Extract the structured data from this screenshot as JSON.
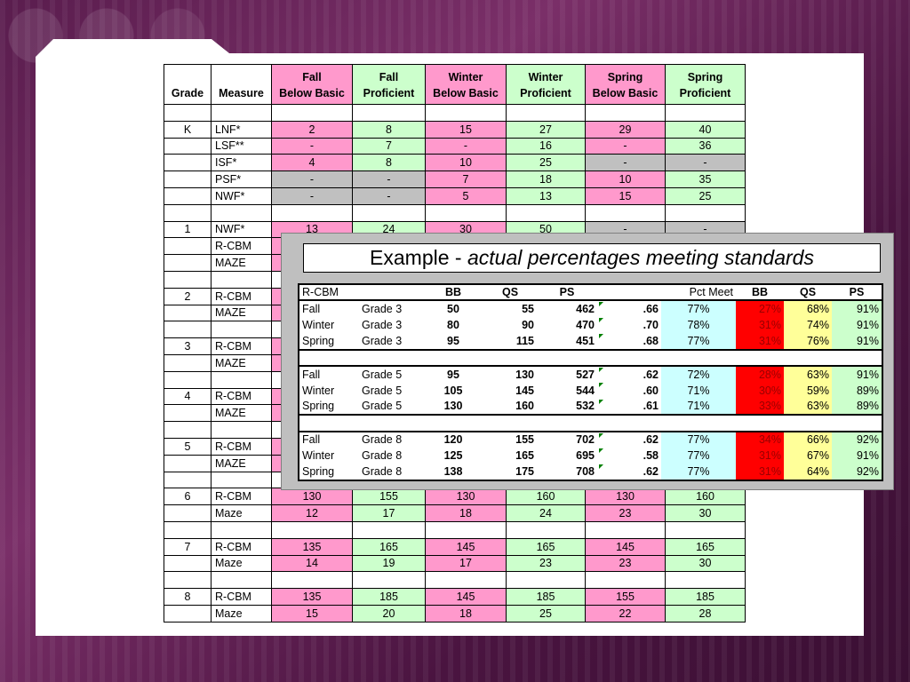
{
  "main_table": {
    "headers": [
      {
        "line1": "",
        "line2": "Grade"
      },
      {
        "line1": "",
        "line2": "Measure"
      },
      {
        "line1": "Fall",
        "line2": "Below Basic"
      },
      {
        "line1": "Fall",
        "line2": "Proficient"
      },
      {
        "line1": "Winter",
        "line2": "Below Basic"
      },
      {
        "line1": "Winter",
        "line2": "Proficient"
      },
      {
        "line1": "Spring",
        "line2": "Below Basic"
      },
      {
        "line1": "Spring",
        "line2": "Proficient"
      }
    ],
    "rows": [
      {
        "grade": "",
        "measure": "",
        "vals": [
          "",
          "",
          "",
          "",
          "",
          ""
        ],
        "cls": [
          "w",
          "w",
          "w",
          "w",
          "w",
          "w"
        ]
      },
      {
        "grade": "K",
        "measure": "LNF*",
        "vals": [
          "2",
          "8",
          "15",
          "27",
          "29",
          "40"
        ],
        "cls": [
          "p",
          "g",
          "p",
          "g",
          "p",
          "g"
        ]
      },
      {
        "grade": "",
        "measure": "LSF**",
        "vals": [
          "-",
          "7",
          "-",
          "16",
          "-",
          "36"
        ],
        "cls": [
          "p",
          "g",
          "p",
          "g",
          "p",
          "g"
        ]
      },
      {
        "grade": "",
        "measure": "ISF*",
        "vals": [
          "4",
          "8",
          "10",
          "25",
          "-",
          "-"
        ],
        "cls": [
          "p",
          "g",
          "p",
          "g",
          "x",
          "x"
        ]
      },
      {
        "grade": "",
        "measure": "PSF*",
        "vals": [
          "-",
          "-",
          "7",
          "18",
          "10",
          "35"
        ],
        "cls": [
          "x",
          "x",
          "p",
          "g",
          "p",
          "g"
        ]
      },
      {
        "grade": "",
        "measure": "NWF*",
        "vals": [
          "-",
          "-",
          "5",
          "13",
          "15",
          "25"
        ],
        "cls": [
          "x",
          "x",
          "p",
          "g",
          "p",
          "g"
        ]
      },
      {
        "grade": "",
        "measure": "",
        "vals": [
          "",
          "",
          "",
          "",
          "",
          ""
        ],
        "cls": [
          "w",
          "w",
          "w",
          "w",
          "w",
          "w"
        ]
      },
      {
        "grade": "1",
        "measure": "NWF*",
        "vals": [
          "13",
          "24",
          "30",
          "50",
          "-",
          "-"
        ],
        "cls": [
          "p",
          "g",
          "p",
          "g",
          "x",
          "x"
        ]
      },
      {
        "grade": "",
        "measure": "R-CBM",
        "vals": [
          "",
          "",
          "",
          "",
          "",
          ""
        ],
        "cls": [
          "p",
          "g",
          "p",
          "g",
          "p",
          "g"
        ]
      },
      {
        "grade": "",
        "measure": "MAZE",
        "vals": [
          "",
          "",
          "",
          "",
          "",
          ""
        ],
        "cls": [
          "p",
          "g",
          "p",
          "g",
          "p",
          "g"
        ]
      },
      {
        "grade": "",
        "measure": "",
        "vals": [
          "",
          "",
          "",
          "",
          "",
          ""
        ],
        "cls": [
          "w",
          "w",
          "w",
          "w",
          "w",
          "w"
        ]
      },
      {
        "grade": "2",
        "measure": "R-CBM",
        "vals": [
          "",
          "",
          "",
          "",
          "",
          ""
        ],
        "cls": [
          "p",
          "g",
          "p",
          "g",
          "p",
          "g"
        ]
      },
      {
        "grade": "",
        "measure": "MAZE",
        "vals": [
          "",
          "",
          "",
          "",
          "",
          ""
        ],
        "cls": [
          "p",
          "g",
          "p",
          "g",
          "p",
          "g"
        ]
      },
      {
        "grade": "",
        "measure": "",
        "vals": [
          "",
          "",
          "",
          "",
          "",
          ""
        ],
        "cls": [
          "w",
          "w",
          "w",
          "w",
          "w",
          "w"
        ]
      },
      {
        "grade": "3",
        "measure": "R-CBM",
        "vals": [
          "",
          "",
          "",
          "",
          "",
          ""
        ],
        "cls": [
          "p",
          "g",
          "p",
          "g",
          "p",
          "g"
        ]
      },
      {
        "grade": "",
        "measure": "MAZE",
        "vals": [
          "",
          "",
          "",
          "",
          "",
          ""
        ],
        "cls": [
          "p",
          "g",
          "p",
          "g",
          "p",
          "g"
        ]
      },
      {
        "grade": "",
        "measure": "",
        "vals": [
          "",
          "",
          "",
          "",
          "",
          ""
        ],
        "cls": [
          "w",
          "w",
          "w",
          "w",
          "w",
          "w"
        ]
      },
      {
        "grade": "4",
        "measure": "R-CBM",
        "vals": [
          "",
          "",
          "",
          "",
          "",
          ""
        ],
        "cls": [
          "p",
          "g",
          "p",
          "g",
          "p",
          "g"
        ]
      },
      {
        "grade": "",
        "measure": "MAZE",
        "vals": [
          "",
          "",
          "",
          "",
          "",
          ""
        ],
        "cls": [
          "p",
          "g",
          "p",
          "g",
          "p",
          "g"
        ]
      },
      {
        "grade": "",
        "measure": "",
        "vals": [
          "",
          "",
          "",
          "",
          "",
          ""
        ],
        "cls": [
          "w",
          "w",
          "w",
          "w",
          "w",
          "w"
        ]
      },
      {
        "grade": "5",
        "measure": "R-CBM",
        "vals": [
          "",
          "",
          "",
          "",
          "",
          ""
        ],
        "cls": [
          "p",
          "g",
          "p",
          "g",
          "p",
          "g"
        ]
      },
      {
        "grade": "",
        "measure": "MAZE",
        "vals": [
          "",
          "",
          "",
          "",
          "",
          ""
        ],
        "cls": [
          "p",
          "g",
          "p",
          "g",
          "p",
          "g"
        ]
      },
      {
        "grade": "",
        "measure": "",
        "vals": [
          "",
          "",
          "",
          "",
          "",
          ""
        ],
        "cls": [
          "w",
          "w",
          "w",
          "w",
          "w",
          "w"
        ]
      },
      {
        "grade": "6",
        "measure": "R-CBM",
        "vals": [
          "130",
          "155",
          "130",
          "160",
          "130",
          "160"
        ],
        "cls": [
          "p",
          "g",
          "p",
          "g",
          "p",
          "g"
        ]
      },
      {
        "grade": "",
        "measure": "Maze",
        "vals": [
          "12",
          "17",
          "18",
          "24",
          "23",
          "30"
        ],
        "cls": [
          "p",
          "g",
          "p",
          "g",
          "p",
          "g"
        ]
      },
      {
        "grade": "",
        "measure": "",
        "vals": [
          "",
          "",
          "",
          "",
          "",
          ""
        ],
        "cls": [
          "w",
          "w",
          "w",
          "w",
          "w",
          "w"
        ]
      },
      {
        "grade": "7",
        "measure": "R-CBM",
        "vals": [
          "135",
          "165",
          "145",
          "165",
          "145",
          "165"
        ],
        "cls": [
          "p",
          "g",
          "p",
          "g",
          "p",
          "g"
        ]
      },
      {
        "grade": "",
        "measure": "Maze",
        "vals": [
          "14",
          "19",
          "17",
          "23",
          "23",
          "30"
        ],
        "cls": [
          "p",
          "g",
          "p",
          "g",
          "p",
          "g"
        ]
      },
      {
        "grade": "",
        "measure": "",
        "vals": [
          "",
          "",
          "",
          "",
          "",
          ""
        ],
        "cls": [
          "w",
          "w",
          "w",
          "w",
          "w",
          "w"
        ]
      },
      {
        "grade": "8",
        "measure": "R-CBM",
        "vals": [
          "135",
          "185",
          "145",
          "185",
          "155",
          "185"
        ],
        "cls": [
          "p",
          "g",
          "p",
          "g",
          "p",
          "g"
        ]
      },
      {
        "grade": "",
        "measure": "Maze",
        "vals": [
          "15",
          "20",
          "18",
          "25",
          "22",
          "28"
        ],
        "cls": [
          "p",
          "g",
          "p",
          "g",
          "p",
          "g"
        ]
      }
    ]
  },
  "overlay": {
    "title_prefix": "Example  - ",
    "title_italic": "actual percentages meeting standards",
    "header": {
      "measure": "R-CBM",
      "bb": "BB",
      "qs": "QS",
      "ps": "PS",
      "pct_meet": "Pct Meet",
      "pbb": "BB",
      "pqs": "QS",
      "pps": "PS"
    },
    "groups": [
      [
        {
          "season": "Fall",
          "grade": "Grade 3",
          "bb": "50",
          "qs": "55",
          "ps": "462",
          "corr": ".66",
          "pct_meet": "77%",
          "pbb": "27%",
          "pqs": "68%",
          "pps": "91%"
        },
        {
          "season": "Winter",
          "grade": "Grade 3",
          "bb": "80",
          "qs": "90",
          "ps": "470",
          "corr": ".70",
          "pct_meet": "78%",
          "pbb": "31%",
          "pqs": "74%",
          "pps": "91%"
        },
        {
          "season": "Spring",
          "grade": "Grade 3",
          "bb": "95",
          "qs": "115",
          "ps": "451",
          "corr": ".68",
          "pct_meet": "77%",
          "pbb": "31%",
          "pqs": "76%",
          "pps": "91%"
        }
      ],
      [
        {
          "season": "Fall",
          "grade": "Grade 5",
          "bb": "95",
          "qs": "130",
          "ps": "527",
          "corr": ".62",
          "pct_meet": "72%",
          "pbb": "28%",
          "pqs": "63%",
          "pps": "91%"
        },
        {
          "season": "Winter",
          "grade": "Grade 5",
          "bb": "105",
          "qs": "145",
          "ps": "544",
          "corr": ".60",
          "pct_meet": "71%",
          "pbb": "30%",
          "pqs": "59%",
          "pps": "89%"
        },
        {
          "season": "Spring",
          "grade": "Grade 5",
          "bb": "130",
          "qs": "160",
          "ps": "532",
          "corr": ".61",
          "pct_meet": "71%",
          "pbb": "33%",
          "pqs": "63%",
          "pps": "89%"
        }
      ],
      [
        {
          "season": "Fall",
          "grade": "Grade 8",
          "bb": "120",
          "qs": "155",
          "ps": "702",
          "corr": ".62",
          "pct_meet": "77%",
          "pbb": "34%",
          "pqs": "66%",
          "pps": "92%"
        },
        {
          "season": "Winter",
          "grade": "Grade 8",
          "bb": "125",
          "qs": "165",
          "ps": "695",
          "corr": ".58",
          "pct_meet": "77%",
          "pbb": "31%",
          "pqs": "67%",
          "pps": "91%"
        },
        {
          "season": "Spring",
          "grade": "Grade 8",
          "bb": "138",
          "qs": "175",
          "ps": "708",
          "corr": ".62",
          "pct_meet": "77%",
          "pbb": "31%",
          "pqs": "64%",
          "pps": "92%"
        }
      ]
    ]
  },
  "colors": {
    "below_basic": "#ff99cc",
    "proficient": "#ccffcc",
    "not_applicable": "#c0c0c0",
    "pct_meet": "#ccffff",
    "pct_bb": "#ff0000",
    "pct_qs": "#ffff99",
    "pct_ps": "#ccffcc"
  }
}
